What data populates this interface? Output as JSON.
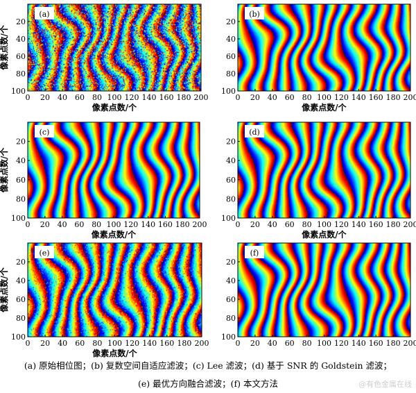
{
  "chart_data": {
    "type": "heatmap",
    "colormap": "jet",
    "panels": [
      {
        "label": "(a)",
        "xlabel": "像素点数/个",
        "ylabel": "像素点数/个",
        "xlim": [
          0,
          200
        ],
        "ylim": [
          0,
          100
        ],
        "x_ticks": [
          0,
          20,
          40,
          60,
          80,
          100,
          120,
          140,
          160,
          180,
          200
        ],
        "y_ticks": [
          20,
          40,
          60,
          80,
          100
        ],
        "noise": "high"
      },
      {
        "label": "(b)",
        "xlabel": "像素点数/个",
        "ylabel": "",
        "xlim": [
          0,
          200
        ],
        "ylim": [
          0,
          100
        ],
        "x_ticks": [
          0,
          20,
          40,
          60,
          80,
          100,
          120,
          140,
          160,
          180,
          200
        ],
        "y_ticks": [
          20,
          40,
          60,
          80,
          100
        ],
        "noise": "low"
      },
      {
        "label": "(c)",
        "xlabel": "像素点数/个",
        "ylabel": "像素点数/个",
        "xlim": [
          0,
          200
        ],
        "ylim": [
          0,
          100
        ],
        "x_ticks": [
          0,
          20,
          40,
          60,
          80,
          100,
          120,
          140,
          160,
          180,
          200
        ],
        "y_ticks": [
          20,
          40,
          60,
          80,
          100
        ],
        "noise": "low"
      },
      {
        "label": "(d)",
        "xlabel": "像素点数/个",
        "ylabel": "",
        "xlim": [
          0,
          200
        ],
        "ylim": [
          0,
          100
        ],
        "x_ticks": [
          0,
          20,
          40,
          60,
          80,
          100,
          120,
          140,
          160,
          180,
          200
        ],
        "y_ticks": [
          20,
          40,
          60,
          80,
          100
        ],
        "noise": "low"
      },
      {
        "label": "(e)",
        "xlabel": "像素点数/个",
        "ylabel": "像素点数/个",
        "xlim": [
          0,
          200
        ],
        "ylim": [
          0,
          100
        ],
        "x_ticks": [
          0,
          20,
          40,
          60,
          80,
          100,
          120,
          140,
          160,
          180,
          200
        ],
        "y_ticks": [
          20,
          40,
          60,
          80,
          100
        ],
        "noise": "medium"
      },
      {
        "label": "(f)",
        "xlabel": "",
        "ylabel": "",
        "xlim": [
          0,
          200
        ],
        "ylim": [
          0,
          100
        ],
        "x_ticks": [
          0,
          20,
          40,
          60,
          80,
          100,
          120,
          140,
          160,
          180,
          200
        ],
        "y_ticks": [
          20,
          40,
          60,
          80,
          100
        ],
        "noise": "none"
      }
    ]
  },
  "caption": {
    "line1": "(a)  原始相位图；(b)  复数空间自适应滤波；(c) Lee 滤波；(d)  基于 SNR 的 Goldstein 滤波；",
    "line2": "(e)  最优方向融合滤波；(f)  本文方法"
  },
  "watermark": "@有色金属在线"
}
